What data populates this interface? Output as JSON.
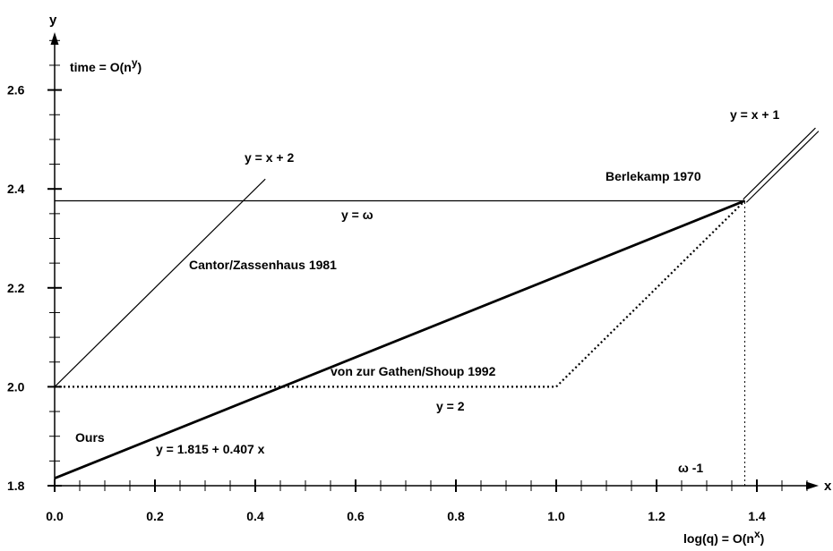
{
  "chart_data": {
    "type": "line",
    "title": "",
    "xlabel": "x",
    "ylabel": "y",
    "xlim": [
      0.0,
      1.5
    ],
    "ylim": [
      1.8,
      2.7
    ],
    "x_major_ticks": [
      {
        "value": 0.0,
        "label": "0.0"
      },
      {
        "value": 0.2,
        "label": "0.2"
      },
      {
        "value": 0.4,
        "label": "0.4"
      },
      {
        "value": 0.6,
        "label": "0.6"
      },
      {
        "value": 0.8,
        "label": "0.8"
      },
      {
        "value": 1.0,
        "label": "1.0"
      },
      {
        "value": 1.2,
        "label": "1.2"
      },
      {
        "value": 1.4,
        "label": "1.4"
      }
    ],
    "y_major_ticks": [
      {
        "value": 1.8,
        "label": "1.8"
      },
      {
        "value": 2.0,
        "label": "2.0"
      },
      {
        "value": 2.2,
        "label": "2.2"
      },
      {
        "value": 2.4,
        "label": "2.4"
      },
      {
        "value": 2.6,
        "label": "2.6"
      }
    ],
    "minor_tick_step": 0.05,
    "grid": false,
    "omega": 2.376,
    "series": [
      {
        "style": "thin",
        "x": [
          0.0,
          0.42
        ],
        "y": [
          2.0,
          2.42
        ]
      },
      {
        "style": "thin",
        "x": [
          0.0,
          1.376
        ],
        "y": [
          2.376,
          2.376
        ]
      },
      {
        "style": "thick",
        "x": [
          0.0,
          1.376
        ],
        "y": [
          1.815,
          2.376
        ]
      },
      {
        "style": "dotted",
        "x": [
          0.0,
          1.0,
          1.376
        ],
        "y": [
          2.0,
          2.0,
          2.376
        ]
      },
      {
        "style": "double",
        "x": [
          1.376,
          1.52
        ],
        "y": [
          2.376,
          2.52
        ]
      },
      {
        "style": "dotted-guide",
        "x": [
          1.376,
          1.376
        ],
        "y": [
          1.8,
          2.376
        ]
      }
    ],
    "annotations": [
      {
        "key": "y-axis-title",
        "text": "time = O(n",
        "sup": "y",
        "after": ")"
      },
      {
        "key": "x-axis-title",
        "text": "log(q) = O(n",
        "sup": "x",
        "after": ")"
      },
      {
        "key": "line-x-plus-2",
        "text": "y = x + 2"
      },
      {
        "key": "line-x-plus-1",
        "text": "y = x + 1"
      },
      {
        "key": "berlekamp",
        "text": "Berlekamp 1970"
      },
      {
        "key": "omega-line",
        "text": "y = ω"
      },
      {
        "key": "cantor",
        "text": "Cantor/Zassenhaus 1981"
      },
      {
        "key": "vzgs",
        "text": "von zur Gathen/Shoup 1992"
      },
      {
        "key": "y-equals-2",
        "text": "y = 2"
      },
      {
        "key": "ours",
        "text": "Ours"
      },
      {
        "key": "ours-formula",
        "text": "y = 1.815 + 0.407 x"
      },
      {
        "key": "omega-minus-1",
        "text": "ω -1"
      }
    ]
  }
}
